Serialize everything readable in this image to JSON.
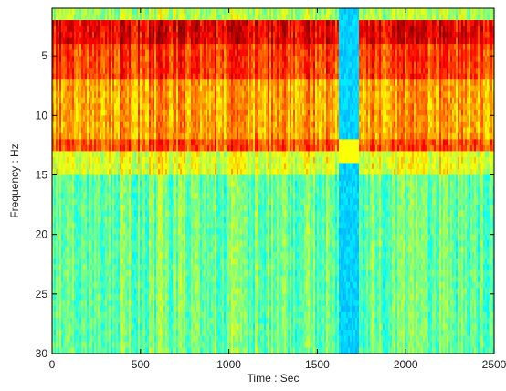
{
  "chart_data": {
    "type": "heatmap",
    "title": "",
    "xlabel": "Time : Sec",
    "ylabel": "Frequency : Hz",
    "xlim": [
      0,
      2500
    ],
    "ylim": [
      1,
      30
    ],
    "y_reversed": true,
    "x_ticks": [
      0,
      500,
      1000,
      1500,
      2000,
      2500
    ],
    "x_tick_labels": [
      "0",
      "500",
      "1000",
      "1500",
      "2000",
      "2500"
    ],
    "y_ticks": [
      5,
      10,
      15,
      20,
      25,
      30
    ],
    "y_tick_labels": [
      "5",
      "10",
      "15",
      "20",
      "25",
      "30"
    ],
    "grid": false,
    "legend": "none",
    "colormap": "jet",
    "value_range": [
      0,
      1
    ],
    "frequency_bands": [
      {
        "from": 1,
        "to": 2,
        "level": 0.55
      },
      {
        "from": 2,
        "to": 4,
        "level": 0.9
      },
      {
        "from": 4,
        "to": 7,
        "level": 0.82
      },
      {
        "from": 7,
        "to": 12,
        "level": 0.72
      },
      {
        "from": 12,
        "to": 13,
        "level": 0.8
      },
      {
        "from": 13,
        "to": 15,
        "level": 0.6
      },
      {
        "from": 15,
        "to": 30,
        "level": 0.48
      }
    ],
    "artifact_segment": {
      "time_from": 1620,
      "time_to": 1740,
      "level": 0.33
    }
  }
}
